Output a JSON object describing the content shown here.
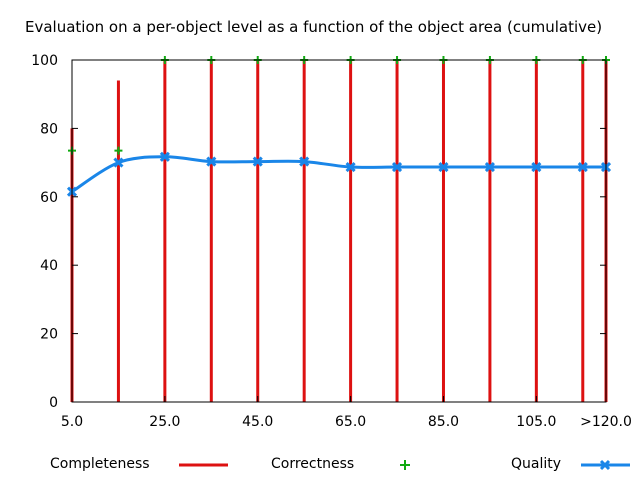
{
  "chart_data": {
    "type": "bar+line",
    "title": "Evaluation on a per-object level as a function of the object area (cumulative)",
    "x": [
      5.0,
      15.0,
      25.0,
      35.0,
      45.0,
      55.0,
      65.0,
      75.0,
      85.0,
      95.0,
      105.0,
      115.0,
      120.0
    ],
    "x_tick_labels": [
      "5.0",
      "25.0",
      "45.0",
      "65.0",
      "85.0",
      "105.0",
      ">120.0"
    ],
    "x_tick_values": [
      5.0,
      25.0,
      45.0,
      65.0,
      85.0,
      105.0,
      120.0
    ],
    "y_ticks": [
      0,
      20,
      40,
      60,
      80,
      100
    ],
    "ylim": [
      0,
      100
    ],
    "xlim": [
      5.0,
      120.0
    ],
    "grid": false,
    "legend_position": "bottom",
    "series": [
      {
        "name": "Completeness",
        "style": "impulses",
        "color": "#dd1111",
        "values": [
          80,
          94,
          100,
          100,
          100,
          100,
          100,
          100,
          100,
          100,
          100,
          100,
          100
        ]
      },
      {
        "name": "Correctness",
        "style": "points",
        "color": "#11aa11",
        "values": [
          73.5,
          73.5,
          100,
          100,
          100,
          100,
          100,
          100,
          100,
          100,
          100,
          100,
          100
        ]
      },
      {
        "name": "Quality",
        "style": "linespoints",
        "color": "#1a86e8",
        "values": [
          61.5,
          70,
          71.7,
          70.3,
          70.3,
          70.3,
          68.7,
          68.7,
          68.7,
          68.7,
          68.7,
          68.7,
          68.7
        ]
      }
    ]
  }
}
